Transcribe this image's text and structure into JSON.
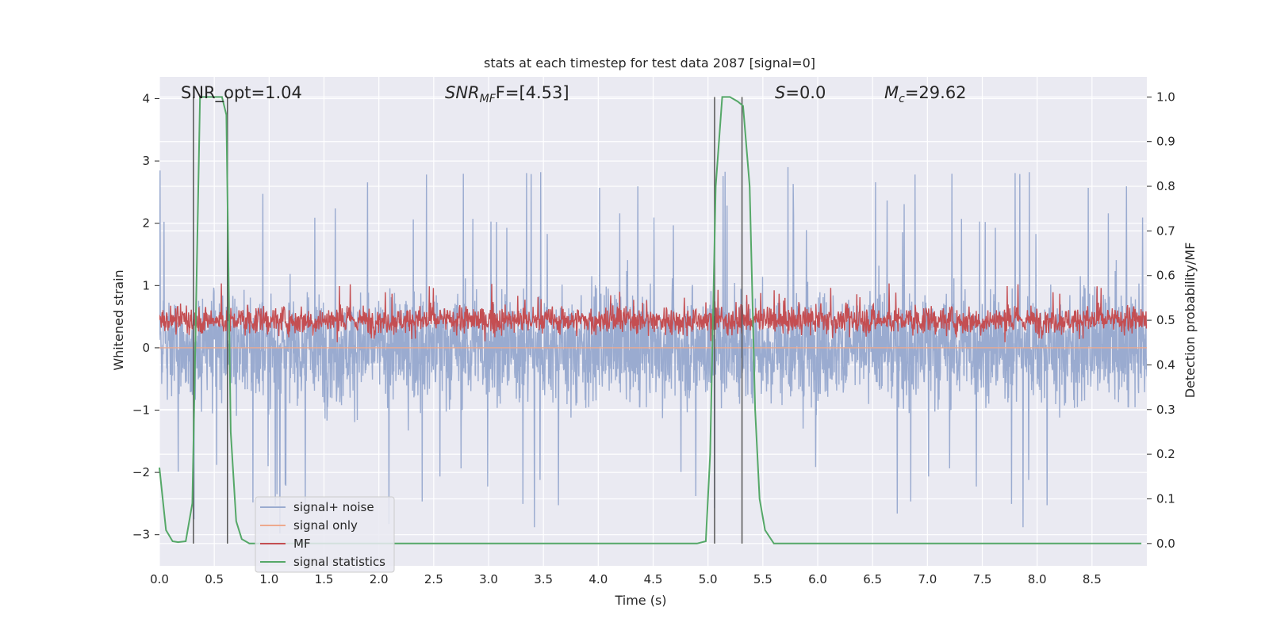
{
  "chart_data": {
    "type": "line",
    "title": "stats at each timestep for test data 2087 [signal=0]",
    "xlabel": "Time (s)",
    "ylabel_left": "Whitened strain",
    "ylabel_right": "Detection probability/MF",
    "xlim": [
      0.0,
      9.0
    ],
    "ylim_left": [
      -3.5,
      4.35
    ],
    "ylim_right": [
      -0.05,
      1.045
    ],
    "x_ticks": [
      "0.0",
      "0.5",
      "1.0",
      "1.5",
      "2.0",
      "2.5",
      "3.0",
      "3.5",
      "4.0",
      "4.5",
      "5.0",
      "5.5",
      "6.0",
      "6.5",
      "7.0",
      "7.5",
      "8.0",
      "8.5"
    ],
    "y_ticks_left": [
      "4",
      "3",
      "2",
      "1",
      "0",
      "−1",
      "−2",
      "−3"
    ],
    "y_ticks_right": [
      "1.0",
      "0.9",
      "0.8",
      "0.7",
      "0.6",
      "0.5",
      "0.4",
      "0.3",
      "0.2",
      "0.1",
      "0.0"
    ],
    "grid": true,
    "legend_position": "lower-left",
    "colors": {
      "background": "#eaeaf2",
      "grid": "#ffffff",
      "noise": "#9aabd0",
      "signal_only": "#eea98d",
      "mf": "#c44e52",
      "stats": "#55a868",
      "marker_lines": "#555555"
    },
    "annotations": {
      "snr_opt": "SNR_opt=1.04",
      "snr_mf_base": "SNR",
      "snr_mf_sub": "MF",
      "snr_mf_value": "F=[4.53]",
      "s_label": "S",
      "s_value": "=0.0",
      "mc_base": "M",
      "mc_sub": "c",
      "mc_value": "=29.62"
    },
    "series": [
      {
        "name": "signal+ noise",
        "axis": "left",
        "description_style": "dense noise band",
        "envelope_typical": [
          -1.7,
          1.8
        ],
        "envelope_extremes": [
          -3.1,
          4.0
        ]
      },
      {
        "name": "signal only",
        "axis": "left",
        "values_constant": 0.0
      },
      {
        "name": "MF",
        "axis": "right",
        "envelope_typical": [
          0.45,
          0.56
        ],
        "envelope_extremes": [
          0.44,
          0.6
        ]
      },
      {
        "name": "signal statistics",
        "axis": "right",
        "x": [
          0.0,
          0.06,
          0.12,
          0.17,
          0.24,
          0.3,
          0.37,
          0.43,
          0.5,
          0.57,
          0.61,
          0.65,
          0.7,
          0.75,
          0.82,
          1.0,
          2.0,
          3.0,
          4.0,
          4.9,
          4.98,
          5.02,
          5.07,
          5.13,
          5.2,
          5.27,
          5.32,
          5.38,
          5.43,
          5.47,
          5.52,
          5.6,
          6.0,
          7.0,
          8.0,
          8.95
        ],
        "y": [
          0.17,
          0.03,
          0.005,
          0.003,
          0.005,
          0.09,
          1.0,
          1.0,
          1.0,
          1.0,
          0.96,
          0.25,
          0.05,
          0.01,
          0.0,
          0.0,
          0.0,
          0.0,
          0.0,
          0.0,
          0.005,
          0.2,
          0.8,
          1.0,
          1.0,
          0.99,
          0.98,
          0.8,
          0.3,
          0.1,
          0.03,
          0.0,
          0.0,
          0.0,
          0.0,
          0.0
        ]
      }
    ],
    "marker_lines_x": [
      0.31,
      0.62,
      5.06,
      5.31
    ],
    "legend": [
      "signal+ noise",
      "signal only",
      "MF",
      "signal statistics"
    ]
  }
}
